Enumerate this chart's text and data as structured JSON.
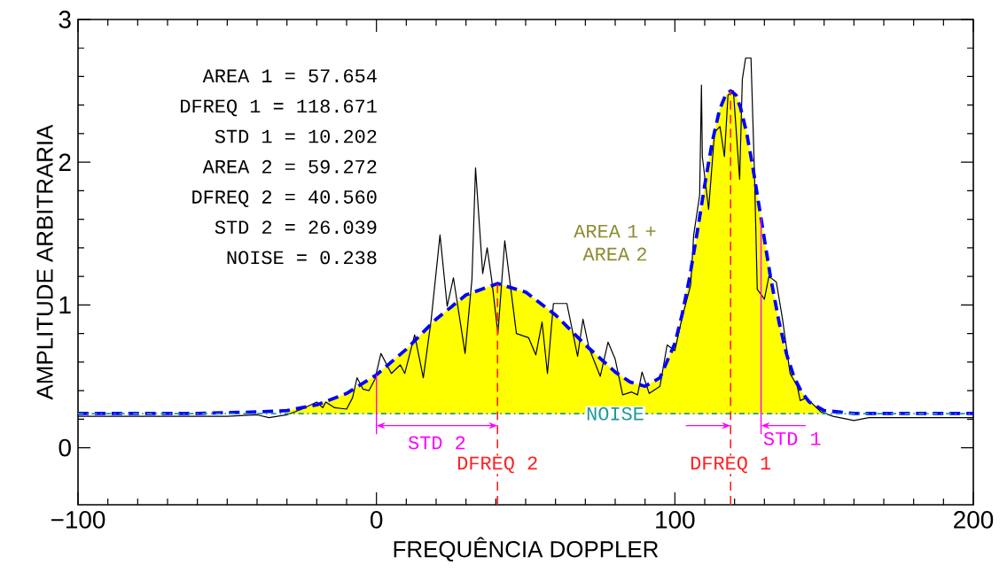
{
  "chart_data": {
    "type": "line",
    "xlabel": "FREQUÊNCIA DOPPLER",
    "ylabel": "AMPLITUDE ARBITRARIA",
    "xlim": [
      -100,
      200
    ],
    "ylim": [
      -0.4,
      3
    ],
    "xticks": [
      {
        "value": -100,
        "label": "−100"
      },
      0,
      100,
      200
    ],
    "yticks": [
      0,
      1,
      2,
      3
    ],
    "series": [
      {
        "type": "area",
        "color": "#ffff00",
        "x": [
          -30,
          -20,
          -10,
          0,
          10,
          20,
          30,
          40.56,
          50,
          60,
          70,
          80,
          85,
          90,
          95,
          100,
          102.5,
          105,
          107.5,
          110,
          112.5,
          115,
          117,
          118.671,
          120.5,
          122,
          124,
          126,
          128,
          130,
          132,
          135,
          137.5,
          140,
          142.5,
          145,
          150
        ],
        "values": [
          0.26,
          0.3,
          0.38,
          0.51,
          0.69,
          0.9,
          1.07,
          1.15,
          1.09,
          0.93,
          0.72,
          0.53,
          0.46,
          0.43,
          0.49,
          0.73,
          0.94,
          1.2,
          1.51,
          1.84,
          2.14,
          2.37,
          2.47,
          2.5,
          2.47,
          2.38,
          2.21,
          1.98,
          1.72,
          1.46,
          1.2,
          0.87,
          0.65,
          0.49,
          0.39,
          0.32,
          0.26
        ]
      },
      {
        "color": "#000000",
        "line_style": "solid",
        "x": [
          -100,
          -50,
          -40,
          -36,
          -30,
          -25,
          -20,
          -18,
          -17,
          -14,
          -10,
          -8,
          -6.5,
          -4.5,
          -2.5,
          -0.5,
          1.5,
          5,
          8,
          9.5,
          12.8,
          15.7,
          18.3,
          21.3,
          23.7,
          25.8,
          29.7,
          32,
          33.2,
          35.6,
          37.1,
          38.6,
          40.7,
          43,
          46.9,
          51,
          53.4,
          55.5,
          57.3,
          59.3,
          63.8,
          67.4,
          69.2,
          71.2,
          75,
          77.6,
          80,
          82.5,
          85.5,
          87.5,
          89,
          91.4,
          95,
          97.4,
          100,
          102.4,
          105.3,
          106.3,
          108.3,
          108.9,
          109.2,
          111.3,
          113.3,
          115.1,
          116.6,
          117.8,
          119.6,
          121.7,
          122.6,
          123.7,
          125.5,
          126.7,
          127.6,
          130,
          131.5,
          134,
          136,
          138.6,
          141,
          142,
          144,
          149,
          153,
          160,
          165,
          200
        ],
        "values": [
          0.22,
          0.22,
          0.23,
          0.21,
          0.23,
          0.27,
          0.32,
          0.28,
          0.32,
          0.28,
          0.27,
          0.35,
          0.49,
          0.41,
          0.4,
          0.48,
          0.66,
          0.52,
          0.58,
          0.52,
          0.79,
          0.49,
          0.89,
          1.49,
          0.99,
          1.19,
          0.66,
          1.18,
          1.96,
          1.22,
          1.4,
          1.18,
          0.8,
          1.45,
          0.8,
          0.77,
          0.65,
          0.88,
          0.52,
          1.01,
          1.01,
          0.64,
          0.9,
          0.7,
          0.5,
          0.74,
          0.62,
          0.37,
          0.39,
          0.37,
          0.53,
          0.38,
          0.43,
          0.72,
          0.68,
          0.91,
          1.14,
          1.49,
          1.77,
          2.54,
          2.04,
          1.67,
          2.21,
          2.25,
          2.04,
          2.47,
          2.5,
          1.88,
          2.58,
          2.73,
          2.73,
          1.9,
          1.11,
          1.04,
          1.2,
          1.16,
          0.91,
          0.52,
          0.43,
          0.33,
          0.35,
          0.25,
          0.22,
          0.19,
          0.21,
          0.21
        ]
      },
      {
        "color": "#0000ff",
        "line_style": "dashed",
        "x": [
          -100,
          -60,
          -40,
          -30,
          -20,
          -10,
          0,
          10,
          20,
          30,
          40.56,
          50,
          60,
          70,
          80,
          85,
          90,
          95,
          100,
          102.5,
          105,
          107.5,
          110,
          112.5,
          115,
          117,
          118.671,
          120.5,
          122,
          124,
          126,
          128,
          130,
          132,
          135,
          137.5,
          140,
          142.5,
          145,
          150,
          160,
          200
        ],
        "values": [
          0.24,
          0.24,
          0.25,
          0.26,
          0.3,
          0.38,
          0.51,
          0.69,
          0.9,
          1.07,
          1.15,
          1.09,
          0.93,
          0.72,
          0.53,
          0.46,
          0.43,
          0.49,
          0.73,
          0.94,
          1.2,
          1.51,
          1.84,
          2.14,
          2.37,
          2.47,
          2.5,
          2.47,
          2.38,
          2.21,
          1.98,
          1.72,
          1.46,
          1.2,
          0.87,
          0.65,
          0.49,
          0.39,
          0.32,
          0.26,
          0.24,
          0.24
        ]
      }
    ],
    "ref_lines": [
      {
        "axis": "y",
        "value": 0.238,
        "label": "NOISE",
        "color": "#209a9a",
        "line_style": "dashdot"
      },
      {
        "axis": "x",
        "value": 40.56,
        "label": "DFREQ 2",
        "color": "#ff2020",
        "line_style": "dashed"
      },
      {
        "axis": "x",
        "value": 118.671,
        "label": "DFREQ 1",
        "color": "#ff2020",
        "line_style": "dashed"
      },
      {
        "axis": "x",
        "value": 0,
        "label": "STD 2",
        "color": "#ff00ff",
        "line_style": "solid"
      },
      {
        "axis": "x",
        "value": 128.873,
        "label": "STD 1",
        "color": "#ff00ff",
        "line_style": "solid"
      }
    ],
    "annotations": [
      "AREA 1 =   57.654",
      "DFREQ 1 = 118.671",
      "STD 1 =   10.202",
      "AREA 2 =   59.272",
      "DFREQ 2 =   40.560",
      "STD 2 =   26.039",
      "NOISE =    0.238",
      "AREA 1 + AREA 2"
    ]
  }
}
